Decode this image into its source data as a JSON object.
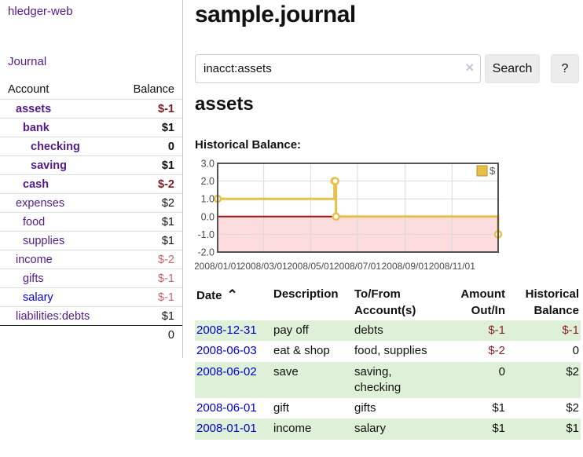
{
  "colors": {
    "link_purple": "#551a8b",
    "link_blue": "#0000e6",
    "date_link_blue": "#0000cc",
    "negative_strong": "#7b1c22",
    "negative_soft": "#c4636b",
    "register_negative": "#8b2226",
    "row_green": "#dff0d8",
    "chart_gold": "#e6c04a"
  },
  "sidebar": {
    "brand": "hledger-web",
    "nav_journal": "Journal",
    "accounts_table": {
      "col_account": "Account",
      "col_balance": "Balance",
      "rows": [
        {
          "name": "assets",
          "indent": 0,
          "bold": true,
          "balance": "$-1",
          "negative": true,
          "blue": false
        },
        {
          "name": "bank",
          "indent": 1,
          "bold": true,
          "balance": "$1",
          "negative": false,
          "blue": false
        },
        {
          "name": "checking",
          "indent": 2,
          "bold": true,
          "balance": "0",
          "negative": false,
          "blue": false
        },
        {
          "name": "saving",
          "indent": 2,
          "bold": true,
          "balance": "$1",
          "negative": false,
          "blue": false
        },
        {
          "name": "cash",
          "indent": 1,
          "bold": true,
          "balance": "$-2",
          "negative": true,
          "blue": false
        },
        {
          "name": "expenses",
          "indent": 0,
          "bold": false,
          "balance": "$2",
          "negative": false,
          "blue": false
        },
        {
          "name": "food",
          "indent": 1,
          "bold": false,
          "balance": "$1",
          "negative": false,
          "blue": false
        },
        {
          "name": "supplies",
          "indent": 1,
          "bold": false,
          "balance": "$1",
          "negative": false,
          "blue": false
        },
        {
          "name": "income",
          "indent": 0,
          "bold": false,
          "balance": "$-2",
          "negative": true,
          "blue": false
        },
        {
          "name": "gifts",
          "indent": 1,
          "bold": false,
          "balance": "$-1",
          "negative": true,
          "blue": false
        },
        {
          "name": "salary",
          "indent": 1,
          "bold": false,
          "balance": "$-1",
          "negative": true,
          "blue": true
        },
        {
          "name": "liabilities:debts",
          "indent": 0,
          "bold": false,
          "balance": "$1",
          "negative": false,
          "blue": false
        }
      ],
      "total": "0"
    }
  },
  "main": {
    "title": "sample.journal",
    "search": {
      "value": "inacct:assets",
      "clear_icon": "×",
      "button": "Search",
      "help_button": "?"
    },
    "account_heading": "assets",
    "chart_label": "Historical Balance:"
  },
  "chart_data": {
    "type": "line",
    "step": true,
    "title": "Historical Balance:",
    "x_range": [
      "2008-01-01",
      "2008-12-31"
    ],
    "ylim": [
      -2,
      3
    ],
    "x_ticks": [
      "2008/01/01",
      "2008/03/01",
      "2008/05/01",
      "2008/07/01",
      "2008/09/01",
      "2008/11/01"
    ],
    "y_ticks": [
      "3.0",
      "2.0",
      "1.0",
      "0.0",
      "-1.0",
      "-2.0"
    ],
    "series": [
      {
        "name": "$",
        "color": "#e6c04a",
        "points": [
          [
            "2008-01-01",
            1
          ],
          [
            "2008-06-01",
            2
          ],
          [
            "2008-06-02",
            2
          ],
          [
            "2008-06-03",
            0
          ],
          [
            "2008-12-31",
            -1
          ]
        ]
      }
    ],
    "legend": {
      "label": "$",
      "position": "top-right"
    },
    "grid": true,
    "gridline_color": "#d9d9d9",
    "border_color": "#545454",
    "negative_region_color": "#fcdcdc",
    "zero_line_color": "#9b1313",
    "tick_label_color": "#4a4a4a"
  },
  "register": {
    "headers": {
      "date": "Date",
      "sort_icon": "⌃",
      "description": "Description",
      "account": "To/From Account(s)",
      "amount": "Amount Out/In",
      "balance": "Historical Balance"
    },
    "rows": [
      {
        "date": "2008-12-31",
        "description": "pay off",
        "account": "debts",
        "amount": "$-1",
        "balance": "$-1"
      },
      {
        "date": "2008-06-03",
        "description": "eat & shop",
        "account": "food, supplies",
        "amount": "$-2",
        "balance": "0"
      },
      {
        "date": "2008-06-02",
        "description": "save",
        "account": "saving, checking",
        "amount": "0",
        "balance": "$2"
      },
      {
        "date": "2008-06-01",
        "description": "gift",
        "account": "gifts",
        "amount": "$1",
        "balance": "$2"
      },
      {
        "date": "2008-01-01",
        "description": "income",
        "account": "salary",
        "amount": "$1",
        "balance": "$1"
      }
    ]
  }
}
